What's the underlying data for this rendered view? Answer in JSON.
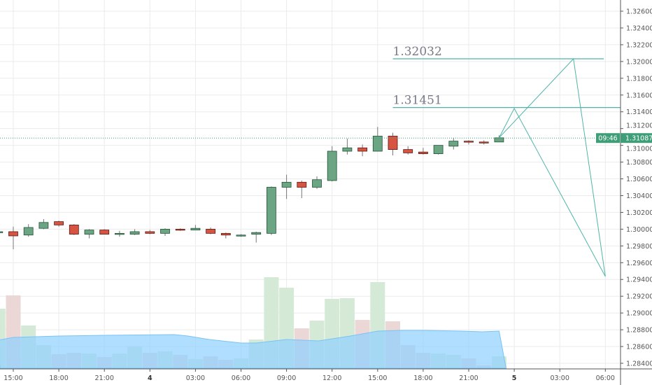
{
  "chart_data": {
    "type": "candlestick",
    "interval": "1 hour",
    "x_labels": [
      {
        "i": 0,
        "label": "15:00"
      },
      {
        "i": 3,
        "label": "18:00"
      },
      {
        "i": 6,
        "label": "21:00"
      },
      {
        "i": 9,
        "label": "4",
        "bold": true
      },
      {
        "i": 12,
        "label": "03:00"
      },
      {
        "i": 15,
        "label": "06:00"
      },
      {
        "i": 18,
        "label": "09:00"
      },
      {
        "i": 21,
        "label": "12:00"
      },
      {
        "i": 24,
        "label": "15:00"
      },
      {
        "i": 27,
        "label": "18:00"
      },
      {
        "i": 30,
        "label": "21:00"
      },
      {
        "i": 33,
        "label": "5",
        "bold": true
      },
      {
        "i": 36,
        "label": "03:00"
      },
      {
        "i": 39,
        "label": "06:00"
      }
    ],
    "y_ticks": [
      "1.32600",
      "1.32400",
      "1.32200",
      "1.32000",
      "1.31800",
      "1.31600",
      "1.31400",
      "1.31200",
      "1.31000",
      "1.30800",
      "1.30600",
      "1.30400",
      "1.30200",
      "1.30000",
      "1.29800",
      "1.29600",
      "1.29400",
      "1.29200",
      "1.29000",
      "1.28800",
      "1.28600",
      "1.28400"
    ],
    "ylim": [
      1.2834,
      1.3272
    ],
    "candles": [
      {
        "o": 1.2997,
        "h": 1.2998,
        "l": 1.2996,
        "c": 1.2997,
        "v": 85
      },
      {
        "o": 1.2997,
        "h": 1.3003,
        "l": 1.2976,
        "c": 1.2992,
        "v": 104
      },
      {
        "o": 1.2993,
        "h": 1.3006,
        "l": 1.2991,
        "c": 1.3002,
        "v": 61
      },
      {
        "o": 1.3001,
        "h": 1.3012,
        "l": 1.3,
        "c": 1.3008,
        "v": 33
      },
      {
        "o": 1.3009,
        "h": 1.301,
        "l": 1.3003,
        "c": 1.3005,
        "v": 20
      },
      {
        "o": 1.3005,
        "h": 1.3006,
        "l": 1.2993,
        "c": 1.2994,
        "v": 22
      },
      {
        "o": 1.2994,
        "h": 1.3,
        "l": 1.2989,
        "c": 1.2999,
        "v": 21
      },
      {
        "o": 1.2999,
        "h": 1.3,
        "l": 1.2994,
        "c": 1.2994,
        "v": 16
      },
      {
        "o": 1.2994,
        "h": 1.2998,
        "l": 1.2991,
        "c": 1.2995,
        "v": 21
      },
      {
        "o": 1.2994,
        "h": 1.3,
        "l": 1.2993,
        "c": 1.2997,
        "v": 31
      },
      {
        "o": 1.2997,
        "h": 1.2999,
        "l": 1.2994,
        "c": 1.2995,
        "v": 22
      },
      {
        "o": 1.2995,
        "h": 1.3001,
        "l": 1.2992,
        "c": 1.3,
        "v": 24
      },
      {
        "o": 1.3,
        "h": 1.3001,
        "l": 1.2998,
        "c": 1.2999,
        "v": 19
      },
      {
        "o": 1.2999,
        "h": 1.3005,
        "l": 1.2999,
        "c": 1.3001,
        "v": 13
      },
      {
        "o": 1.3,
        "h": 1.3002,
        "l": 1.2994,
        "c": 1.2995,
        "v": 17
      },
      {
        "o": 1.2995,
        "h": 1.2996,
        "l": 1.2989,
        "c": 1.2993,
        "v": 12
      },
      {
        "o": 1.2993,
        "h": 1.2994,
        "l": 1.2991,
        "c": 1.2993,
        "v": 14
      },
      {
        "o": 1.2994,
        "h": 1.2997,
        "l": 1.2984,
        "c": 1.2996,
        "v": 41
      },
      {
        "o": 1.2995,
        "h": 1.3051,
        "l": 1.2993,
        "c": 1.305,
        "v": 130
      },
      {
        "o": 1.305,
        "h": 1.3065,
        "l": 1.3036,
        "c": 1.3056,
        "v": 115
      },
      {
        "o": 1.3056,
        "h": 1.3058,
        "l": 1.3037,
        "c": 1.305,
        "v": 57
      },
      {
        "o": 1.305,
        "h": 1.3063,
        "l": 1.3048,
        "c": 1.3059,
        "v": 68
      },
      {
        "o": 1.3058,
        "h": 1.3099,
        "l": 1.3057,
        "c": 1.3093,
        "v": 99
      },
      {
        "o": 1.3093,
        "h": 1.3108,
        "l": 1.3089,
        "c": 1.3097,
        "v": 100
      },
      {
        "o": 1.3097,
        "h": 1.3101,
        "l": 1.3087,
        "c": 1.3093,
        "v": 69
      },
      {
        "o": 1.3093,
        "h": 1.3122,
        "l": 1.3093,
        "c": 1.3111,
        "v": 123
      },
      {
        "o": 1.3111,
        "h": 1.3115,
        "l": 1.3088,
        "c": 1.3095,
        "v": 67
      },
      {
        "o": 1.3095,
        "h": 1.3099,
        "l": 1.3089,
        "c": 1.3091,
        "v": 33
      },
      {
        "o": 1.3092,
        "h": 1.3097,
        "l": 1.3089,
        "c": 1.309,
        "v": 22
      },
      {
        "o": 1.309,
        "h": 1.31,
        "l": 1.3089,
        "c": 1.31,
        "v": 21
      },
      {
        "o": 1.3099,
        "h": 1.3109,
        "l": 1.3095,
        "c": 1.3105,
        "v": 19
      },
      {
        "o": 1.3105,
        "h": 1.3106,
        "l": 1.3101,
        "c": 1.3104,
        "v": 14
      },
      {
        "o": 1.3104,
        "h": 1.3106,
        "l": 1.3101,
        "c": 1.3103,
        "v": 4
      },
      {
        "o": 1.3104,
        "h": 1.3112,
        "l": 1.3104,
        "c": 1.3109,
        "v": 17
      }
    ],
    "volume_ma": [
      {
        "i": -1,
        "v": 40
      },
      {
        "i": 0,
        "v": 44
      },
      {
        "i": 3,
        "v": 46
      },
      {
        "i": 6,
        "v": 47
      },
      {
        "i": 10.6,
        "v": 48
      },
      {
        "i": 11.5,
        "v": 46
      },
      {
        "i": 12.9,
        "v": 41
      },
      {
        "i": 15,
        "v": 36
      },
      {
        "i": 16,
        "v": 36
      },
      {
        "i": 18,
        "v": 41
      },
      {
        "i": 20.1,
        "v": 39
      },
      {
        "i": 22.2,
        "v": 46
      },
      {
        "i": 24,
        "v": 53
      },
      {
        "i": 25.4,
        "v": 54
      },
      {
        "i": 27.2,
        "v": 54
      },
      {
        "i": 29.5,
        "v": 53
      },
      {
        "i": 30.9,
        "v": 52
      },
      {
        "i": 32,
        "v": 53
      }
    ],
    "current_price": "1.31087",
    "countdown": "09:46",
    "drawings": {
      "levels": [
        {
          "price": 1.32032,
          "label": "1.32032",
          "from_i": 25,
          "to_i": 38.9
        },
        {
          "price": 1.31451,
          "label": "1.31451",
          "from_i": 25,
          "to_i": 40.1
        }
      ],
      "paths": [
        [
          {
            "i": 32,
            "p": 1.3109
          },
          {
            "i": 33,
            "p": 1.3144
          },
          {
            "i": 39,
            "p": 1.29436
          }
        ],
        [
          {
            "i": 32,
            "p": 1.3109
          },
          {
            "i": 36.9,
            "p": 1.32032
          },
          {
            "i": 39,
            "p": 1.29436
          }
        ]
      ]
    },
    "colors": {
      "up": "#6ba583",
      "down": "#d75442",
      "up_border": "#225437",
      "down_border": "#5b1a13",
      "vol_up": "#d5ead6",
      "vol_down": "#ecd7d7",
      "ma": "#8fd0ff",
      "drawing": "#4fb5a8",
      "price_line": "#3f9e78"
    }
  }
}
